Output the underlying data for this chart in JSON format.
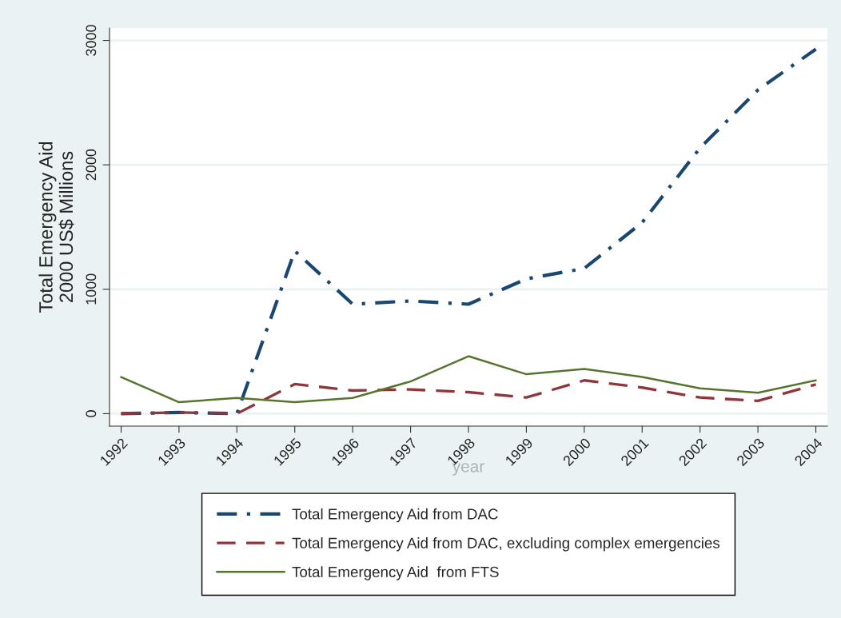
{
  "chart_data": {
    "type": "line",
    "x": [
      1992,
      1993,
      1994,
      1995,
      1996,
      1997,
      1998,
      1999,
      2000,
      2001,
      2002,
      2003,
      2004
    ],
    "xlabel": "year",
    "ylabel": "Total Emergency Aid\n2000 US$ Millions",
    "xlim": [
      1991.8,
      2004.2
    ],
    "xticks": [
      1992,
      1993,
      1994,
      1995,
      1996,
      1997,
      1998,
      1999,
      2000,
      2001,
      2002,
      2003,
      2004
    ],
    "ylim": [
      -100,
      3100
    ],
    "yticks": [
      0,
      1000,
      2000,
      3000
    ],
    "grid": "y",
    "legend": "bottom",
    "series": [
      {
        "name": "Total Emergency Aid from DAC",
        "color": "#1a476f",
        "line_style": "dashdot",
        "values": [
          0,
          10,
          0,
          1308,
          880,
          906,
          880,
          1083,
          1168,
          1536,
          2136,
          2602,
          2930
        ]
      },
      {
        "name": "Total Emergency Aid from DAC, excluding complex emergencies",
        "color": "#90353b",
        "line_style": "dashed",
        "values": [
          0,
          10,
          0,
          238,
          186,
          195,
          173,
          130,
          268,
          210,
          130,
          103,
          235
        ]
      },
      {
        "name": "Total Emergency Aid  from FTS",
        "color": "#55752f",
        "line_style": "solid",
        "values": [
          295,
          92,
          127,
          92,
          127,
          259,
          462,
          317,
          360,
          295,
          204,
          168,
          268
        ]
      }
    ]
  }
}
